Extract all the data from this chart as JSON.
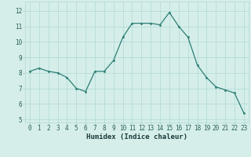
{
  "x": [
    0,
    1,
    2,
    3,
    4,
    5,
    6,
    7,
    8,
    9,
    10,
    11,
    12,
    13,
    14,
    15,
    16,
    17,
    18,
    19,
    20,
    21,
    22,
    23
  ],
  "y": [
    8.1,
    8.3,
    8.1,
    8.0,
    7.7,
    7.0,
    6.8,
    8.1,
    8.1,
    8.8,
    10.3,
    11.2,
    11.2,
    11.2,
    11.1,
    11.9,
    11.0,
    10.3,
    8.5,
    7.7,
    7.1,
    6.9,
    6.7,
    5.4
  ],
  "xlabel": "Humidex (Indice chaleur)",
  "ylim": [
    4.8,
    12.6
  ],
  "xlim": [
    -0.5,
    23.5
  ],
  "yticks": [
    5,
    6,
    7,
    8,
    9,
    10,
    11,
    12
  ],
  "xticks": [
    0,
    1,
    2,
    3,
    4,
    5,
    6,
    7,
    8,
    9,
    10,
    11,
    12,
    13,
    14,
    15,
    16,
    17,
    18,
    19,
    20,
    21,
    22,
    23
  ],
  "line_color": "#2d7f74",
  "marker_color": "#2d7f74",
  "bg_color": "#d5eeea",
  "grid_color": "#b0d8d2",
  "tick_label_color": "#2d5f5a",
  "xlabel_color": "#1a3a3a",
  "font_size_ticks": 5.5,
  "font_size_xlabel": 6.5
}
